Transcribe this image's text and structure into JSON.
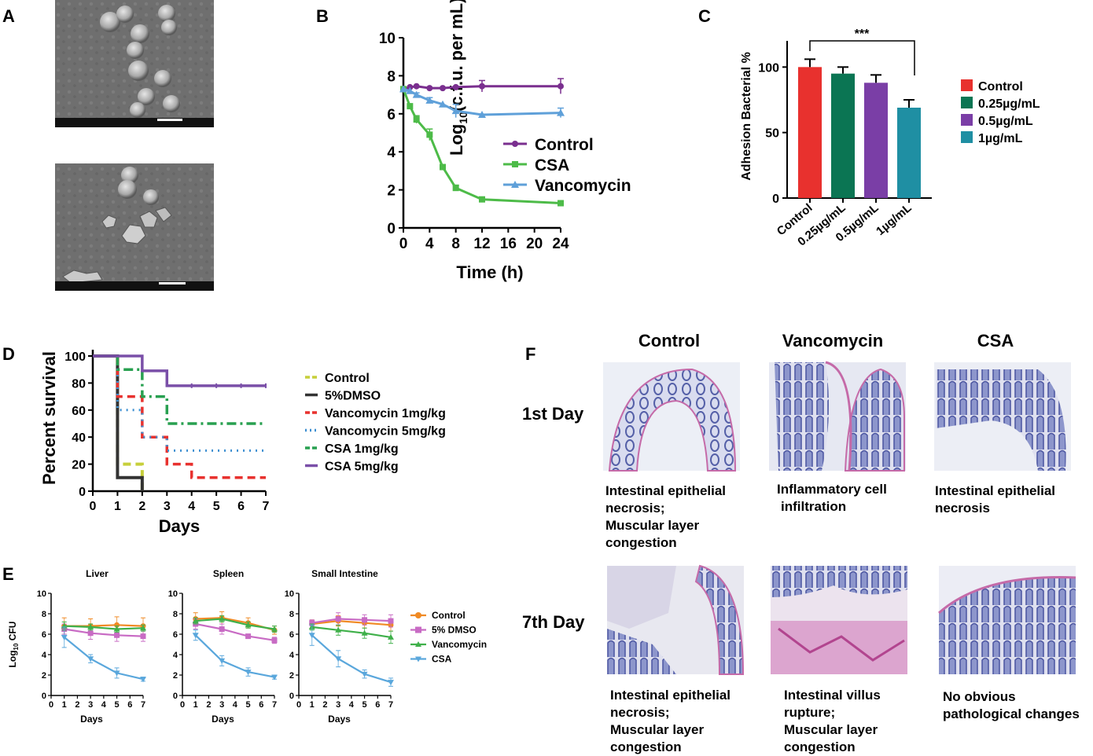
{
  "panel_labels": {
    "A": "A",
    "B": "B",
    "C": "C",
    "D": "D",
    "E": "E",
    "F": "F"
  },
  "colors": {
    "control_b": "#7a2f8f",
    "csa_b": "#4dbb48",
    "vanc_b": "#5fa0d9",
    "bar_control": "#e8312e",
    "bar_025": "#0b7553",
    "bar_05": "#7a3ea6",
    "bar_1": "#1f8fa3",
    "surv_control": "#c7cf3b",
    "surv_dmso": "#333333",
    "surv_v1": "#e8312e",
    "surv_v5": "#3d8fd1",
    "surv_c1": "#28a050",
    "surv_c5": "#7a4fa8",
    "e_control": "#f08a24",
    "e_dmso": "#c86bc4",
    "e_vanc": "#3fb04a",
    "e_csa": "#5aa7dc"
  },
  "chart_data": [
    {
      "id": "B",
      "type": "line",
      "xlabel": "Time (h)",
      "ylabel_main": "Log",
      "ylabel_sub": "10",
      "ylabel_rest": "(c.f.u. per mL)",
      "xlim": [
        0,
        24
      ],
      "ylim": [
        0,
        10
      ],
      "xticks": [
        "0",
        "4",
        "8",
        "12",
        "16",
        "20",
        "24"
      ],
      "yticks": [
        "0",
        "2",
        "4",
        "6",
        "8",
        "10"
      ],
      "series": [
        {
          "name": "Control",
          "x": [
            0,
            1,
            2,
            4,
            6,
            8,
            12,
            24
          ],
          "y": [
            7.3,
            7.4,
            7.45,
            7.35,
            7.35,
            7.4,
            7.45,
            7.45
          ],
          "err": [
            0,
            0,
            0,
            0,
            0,
            0,
            0.3,
            0.4
          ]
        },
        {
          "name": "CSA",
          "x": [
            0,
            1,
            2,
            4,
            6,
            8,
            12,
            24
          ],
          "y": [
            7.3,
            6.4,
            5.7,
            4.9,
            3.2,
            2.1,
            1.5,
            1.3
          ],
          "err": [
            0,
            0,
            0.2,
            0.3,
            0,
            0.15,
            0,
            0
          ]
        },
        {
          "name": "Vancomycin",
          "x": [
            0,
            1,
            2,
            4,
            6,
            8,
            12,
            24
          ],
          "y": [
            7.3,
            7.2,
            7.0,
            6.7,
            6.5,
            6.15,
            5.95,
            6.05
          ],
          "err": [
            0,
            0,
            0.1,
            0.15,
            0,
            0.35,
            0,
            0.25
          ]
        }
      ]
    },
    {
      "id": "C",
      "type": "bar",
      "ylabel": "Adhesion Bacterial %",
      "ylim": [
        0,
        120
      ],
      "yticks": [
        "0",
        "50",
        "100"
      ],
      "categories": [
        "Control",
        "0.25µg/mL",
        "0.5µg/mL",
        "1µg/mL"
      ],
      "values": [
        100,
        95,
        88,
        69
      ],
      "err": [
        6,
        5,
        6,
        6
      ],
      "legend": [
        "Control",
        "0.25µg/mL",
        "0.5µg/mL",
        "1µg/mL"
      ],
      "significance": "***"
    },
    {
      "id": "D",
      "type": "line",
      "xlabel": "Days",
      "ylabel": "Percent survival",
      "xlim": [
        0,
        7
      ],
      "ylim": [
        0,
        100
      ],
      "xticks": [
        "0",
        "1",
        "2",
        "3",
        "4",
        "5",
        "6",
        "7"
      ],
      "yticks": [
        "0",
        "20",
        "40",
        "60",
        "80",
        "100"
      ],
      "series": [
        {
          "name": "Control",
          "steps": [
            [
              0,
              100
            ],
            [
              1,
              100
            ],
            [
              1,
              20
            ],
            [
              2,
              20
            ],
            [
              2,
              0
            ]
          ]
        },
        {
          "name": "5%DMSO",
          "steps": [
            [
              0,
              100
            ],
            [
              1,
              100
            ],
            [
              1,
              10
            ],
            [
              2,
              10
            ],
            [
              2,
              0
            ]
          ]
        },
        {
          "name": "Vancomycin 1mg/kg",
          "steps": [
            [
              1,
              100
            ],
            [
              1,
              70
            ],
            [
              2,
              70
            ],
            [
              2,
              40
            ],
            [
              3,
              40
            ],
            [
              3,
              20
            ],
            [
              4,
              20
            ],
            [
              4,
              10
            ],
            [
              7,
              10
            ]
          ]
        },
        {
          "name": "Vancomycin 5mg/kg",
          "steps": [
            [
              1,
              100
            ],
            [
              1,
              60
            ],
            [
              2,
              60
            ],
            [
              2,
              40
            ],
            [
              3,
              40
            ],
            [
              3,
              30
            ],
            [
              7,
              30
            ]
          ]
        },
        {
          "name": "CSA 1mg/kg",
          "steps": [
            [
              1,
              100
            ],
            [
              1,
              90
            ],
            [
              2,
              90
            ],
            [
              2,
              70
            ],
            [
              3,
              70
            ],
            [
              3,
              50
            ],
            [
              7,
              50
            ]
          ]
        },
        {
          "name": "CSA 5mg/kg",
          "steps": [
            [
              0,
              100
            ],
            [
              2,
              100
            ],
            [
              2,
              89
            ],
            [
              3,
              89
            ],
            [
              3,
              78
            ],
            [
              7,
              78
            ]
          ]
        }
      ]
    },
    {
      "id": "E",
      "type": "line",
      "ylabel_main": "Log",
      "ylabel_sub": "10",
      "ylabel_rest": " CFU",
      "xlabel": "Days",
      "xlim": [
        0,
        7
      ],
      "ylim": [
        0,
        10
      ],
      "xticks": [
        "0",
        "1",
        "2",
        "3",
        "4",
        "5",
        "6",
        "7"
      ],
      "yticks": [
        "0",
        "2",
        "4",
        "6",
        "8",
        "10"
      ],
      "legend": [
        "Control",
        "5% DMSO",
        "Vancomycin",
        "CSA"
      ],
      "subplots": [
        {
          "title": "Liver",
          "x": [
            1,
            3,
            5,
            7
          ],
          "series": [
            {
              "name": "Control",
              "y": [
                6.8,
                6.8,
                6.9,
                6.8
              ],
              "err": [
                0.8,
                0.7,
                0.8,
                0.8
              ]
            },
            {
              "name": "5% DMSO",
              "y": [
                6.5,
                6.1,
                5.9,
                5.8
              ],
              "err": [
                0.5,
                0.6,
                0.6,
                0.5
              ]
            },
            {
              "name": "Vancomycin",
              "y": [
                6.8,
                6.7,
                6.5,
                6.6
              ],
              "err": [
                0.4,
                0.3,
                0.3,
                0.3
              ]
            },
            {
              "name": "CSA",
              "y": [
                5.7,
                3.6,
                2.2,
                1.6
              ],
              "err": [
                1.0,
                0.4,
                0.5,
                0.2
              ]
            }
          ]
        },
        {
          "title": "Spleen",
          "x": [
            1,
            3,
            5,
            7
          ],
          "series": [
            {
              "name": "Control",
              "y": [
                7.5,
                7.6,
                7.1,
                6.4
              ],
              "err": [
                0.6,
                0.6,
                0.5,
                0.4
              ]
            },
            {
              "name": "5% DMSO",
              "y": [
                7.0,
                6.5,
                5.8,
                5.4
              ],
              "err": [
                0.5,
                0.5,
                0.2,
                0.3
              ]
            },
            {
              "name": "Vancomycin",
              "y": [
                7.3,
                7.5,
                6.9,
                6.5
              ],
              "err": [
                0.3,
                0.3,
                0.3,
                0.3
              ]
            },
            {
              "name": "CSA",
              "y": [
                5.9,
                3.4,
                2.3,
                1.8
              ],
              "err": [
                0.5,
                0.5,
                0.4,
                0.2
              ]
            }
          ]
        },
        {
          "title": "Small Intestine",
          "x": [
            1,
            3,
            5,
            7
          ],
          "series": [
            {
              "name": "Control",
              "y": [
                7.0,
                7.3,
                7.1,
                6.9
              ],
              "err": [
                0.4,
                0.5,
                0.5,
                0.6
              ]
            },
            {
              "name": "5% DMSO",
              "y": [
                7.1,
                7.5,
                7.4,
                7.3
              ],
              "err": [
                0.3,
                0.6,
                0.5,
                0.6
              ]
            },
            {
              "name": "Vancomycin",
              "y": [
                6.7,
                6.4,
                6.1,
                5.7
              ],
              "err": [
                0.3,
                0.5,
                0.5,
                0.6
              ]
            },
            {
              "name": "CSA",
              "y": [
                5.9,
                3.6,
                2.1,
                1.3
              ],
              "err": [
                1.0,
                0.8,
                0.4,
                0.4
              ]
            }
          ]
        }
      ]
    }
  ],
  "panel_f": {
    "col_headers": [
      "Control",
      "Vancomycin",
      "CSA"
    ],
    "row_headers": [
      "1st Day",
      "7th Day"
    ],
    "captions_day1": [
      [
        "Intestinal epithelial",
        "necrosis;",
        "Muscular layer",
        "congestion"
      ],
      [
        "Inflammatory cell",
        "infiltration"
      ],
      [
        "Intestinal epithelial",
        "necrosis"
      ]
    ],
    "captions_day7": [
      [
        "Intestinal epithelial",
        "necrosis;",
        "Muscular layer",
        "congestion"
      ],
      [
        "Intestinal villus",
        "rupture;",
        "Muscular layer",
        "congestion"
      ],
      [
        "No obvious",
        "pathological changes"
      ]
    ]
  }
}
